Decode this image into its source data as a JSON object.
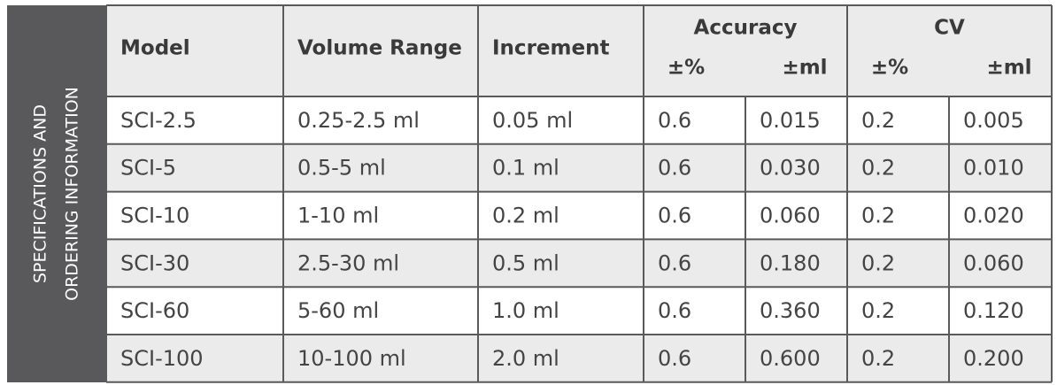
{
  "sidebar": {
    "lines": [
      "SPECIFICATIONS AND",
      "ORDERING INFORMATION"
    ]
  },
  "table": {
    "headers": [
      "Model",
      "Volume Range",
      "Increment"
    ],
    "groups": [
      {
        "title": "Accuracy",
        "subheaders": [
          "±%",
          "±ml"
        ]
      },
      {
        "title": "CV",
        "subheaders": [
          "±%",
          "±ml"
        ]
      }
    ],
    "rows": [
      [
        "SCI-2.5",
        "0.25-2.5 ml",
        "0.05 ml",
        "0.6",
        "0.015",
        "0.2",
        "0.005"
      ],
      [
        "SCI-5",
        "0.5-5 ml",
        "0.1 ml",
        "0.6",
        "0.030",
        "0.2",
        "0.010"
      ],
      [
        "SCI-10",
        "1-10 ml",
        "0.2 ml",
        "0.6",
        "0.060",
        "0.2",
        "0.020"
      ],
      [
        "SCI-30",
        "2.5-30 ml",
        "0.5 ml",
        "0.6",
        "0.180",
        "0.2",
        "0.060"
      ],
      [
        "SCI-60",
        "5-60 ml",
        "1.0 ml",
        "0.6",
        "0.360",
        "0.2",
        "0.120"
      ],
      [
        "SCI-100",
        "10-100 ml",
        "2.0 ml",
        "0.6",
        "0.600",
        "0.2",
        "0.200"
      ]
    ]
  }
}
